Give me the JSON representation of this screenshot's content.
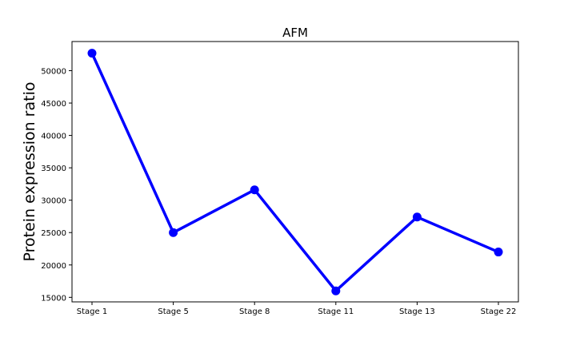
{
  "chart_data": {
    "type": "line",
    "title": "AFM",
    "xlabel": "",
    "ylabel": "Protein expression ratio",
    "categories": [
      "Stage 1",
      "Stage 5",
      "Stage 8",
      "Stage 11",
      "Stage 13",
      "Stage 22"
    ],
    "series": [
      {
        "values": [
          52700,
          25000,
          31600,
          16000,
          27400,
          22000
        ],
        "color": "#0000ff"
      }
    ],
    "ylim": [
      14300,
      54500
    ],
    "yticks": [
      15000,
      20000,
      25000,
      30000,
      35000,
      40000,
      45000,
      50000
    ],
    "grid": false,
    "legend": "none"
  }
}
